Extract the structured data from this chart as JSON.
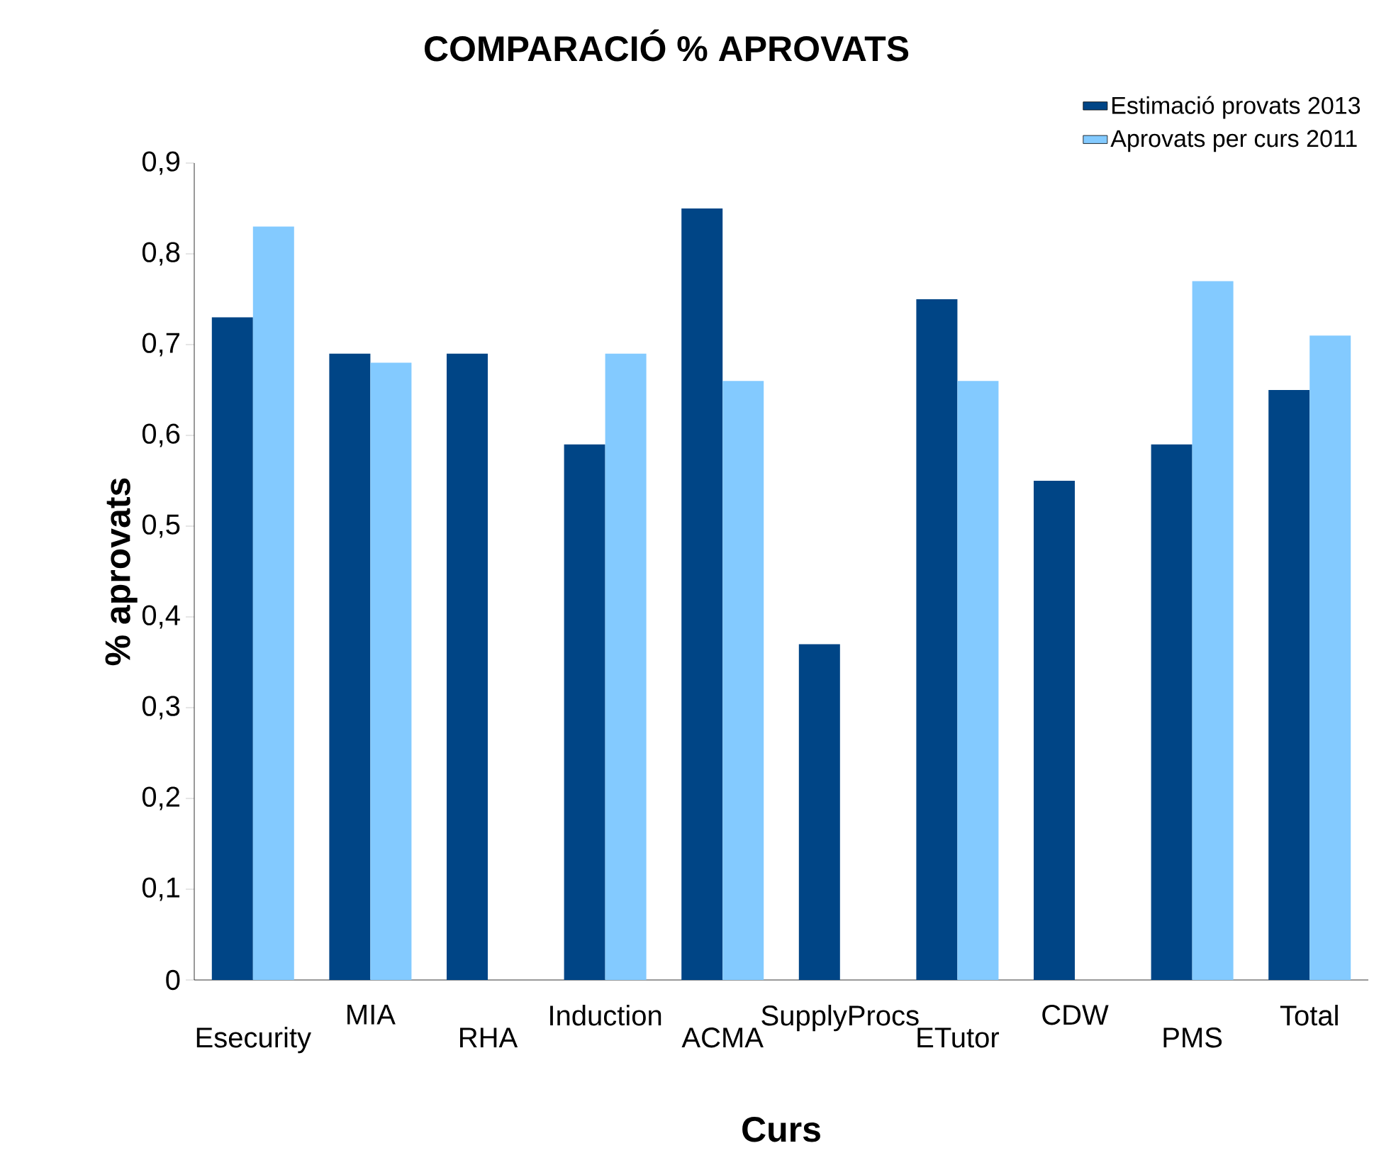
{
  "chart_data": {
    "type": "bar",
    "title": "COMPARACIÓ % APROVATS",
    "xlabel": "Curs",
    "ylabel": "% aprovats",
    "categories": [
      "Esecurity",
      "MIA",
      "RHA",
      "Induction",
      "ACMA",
      "SupplyProcs",
      "ETutor",
      "CDW",
      "PMS",
      "Total"
    ],
    "series": [
      {
        "name": "Estimació provats 2013",
        "color": "#004586",
        "values": [
          0.73,
          0.69,
          0.69,
          0.59,
          0.85,
          0.37,
          0.75,
          0.55,
          0.59,
          0.65
        ]
      },
      {
        "name": "Aprovats per curs 2011",
        "color": "#83caff",
        "values": [
          0.83,
          0.68,
          null,
          0.69,
          0.66,
          null,
          0.66,
          null,
          0.77,
          0.71
        ]
      }
    ],
    "ylim": [
      0,
      0.9
    ],
    "yticks": [
      0,
      {
        "value": 0.1,
        "label": "0,1"
      },
      {
        "value": 0.2,
        "label": "0,2"
      },
      {
        "value": 0.3,
        "label": "0,3"
      },
      {
        "value": 0.4,
        "label": "0,4"
      },
      {
        "value": 0.5,
        "label": "0,5"
      },
      {
        "value": 0.6,
        "label": "0,6"
      },
      {
        "value": 0.7,
        "label": "0,7"
      },
      {
        "value": 0.8,
        "label": "0,8"
      },
      {
        "value": 0.9,
        "label": "0,9"
      }
    ],
    "grid": false,
    "legend": "top right"
  }
}
